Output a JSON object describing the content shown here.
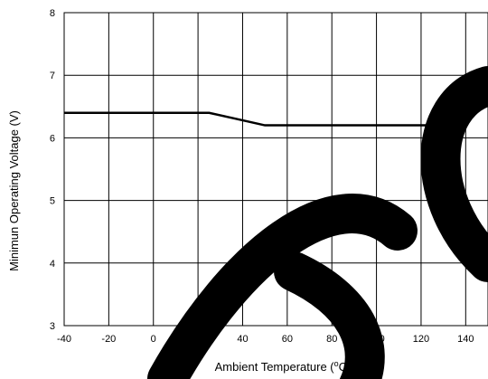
{
  "chart_data": {
    "type": "line",
    "title": "",
    "xlabel": "Ambient Temperature (°C)",
    "ylabel": "Minimun Operating Voltage (V)",
    "xlim": [
      -40,
      150
    ],
    "ylim": [
      3,
      8
    ],
    "xticks": [
      -40,
      -20,
      0,
      20,
      40,
      60,
      80,
      100,
      120,
      140
    ],
    "yticks": [
      3,
      4,
      5,
      6,
      7,
      8
    ],
    "grid": true,
    "series": [
      {
        "x": [
          -40,
          25,
          50,
          125,
          150
        ],
        "y": [
          6.4,
          6.4,
          6.2,
          6.2,
          6.6
        ]
      }
    ]
  },
  "xlabel_parts": {
    "main": "Ambient Temperature (",
    "sup": "o",
    "unit": "C)"
  }
}
